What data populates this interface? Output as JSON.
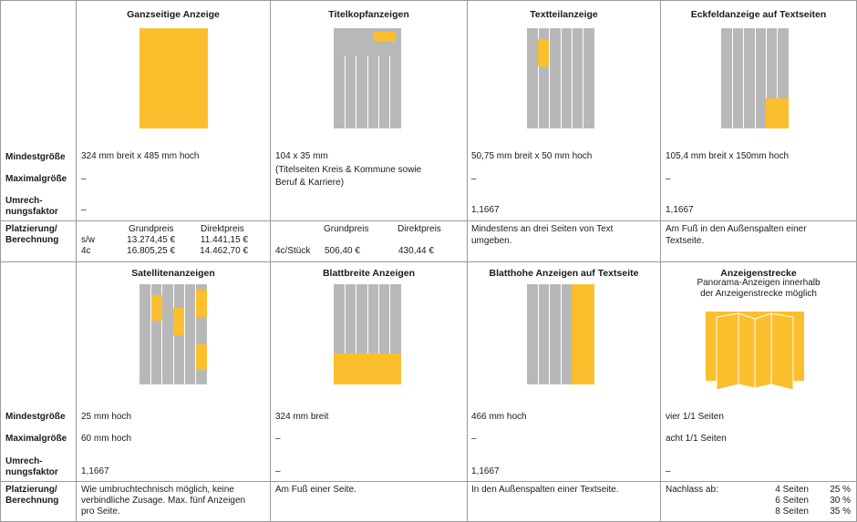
{
  "row_labels": {
    "min": "Mindestgröße",
    "max": "Maximalgröße",
    "factor_1": "Umrech-",
    "factor_2": "nungsfaktor",
    "placement_1": "Platzierung/",
    "placement_2": "Berechnung"
  },
  "top": {
    "full_page": {
      "title": "Ganzseitige Anzeige",
      "min": "324 mm breit x 485 mm hoch",
      "max": "–",
      "factor": "–",
      "price_head_grund": "Grundpreis",
      "price_head_direkt": "Direktpreis",
      "rows": [
        {
          "label": "s/w",
          "grund": "13.274,45 €",
          "direkt": "11.441,15 €"
        },
        {
          "label": "4c",
          "grund": "16.805,25 €",
          "direkt": "14.462,70 €"
        }
      ]
    },
    "title_head": {
      "title": "Titelkopfanzeigen",
      "min": "104 x 35 mm",
      "note_1": "(Titelseiten Kreis & Kommune sowie",
      "note_2": "Beruf & Karriere)",
      "price_head_grund": "Grundpreis",
      "price_head_direkt": "Direktpreis",
      "row_label": "4c/Stück",
      "grund": "506,40 €",
      "direkt": "430,44 €"
    },
    "text_part": {
      "title": "Textteilanzeige",
      "min": "50,75 mm breit x 50 mm hoch",
      "max": "–",
      "factor": "1,1667",
      "placement_1": "Mindestens an drei Seiten von Text",
      "placement_2": "umgeben."
    },
    "corner": {
      "title": "Eckfeldanzeige auf Textseiten",
      "min": "105,4 mm breit x 150mm hoch",
      "max": "–",
      "factor": "1,1667",
      "placement_1": "Am Fuß in den Außenspalten einer",
      "placement_2": "Textseite."
    }
  },
  "bottom": {
    "satellite": {
      "title": "Satellitenanzeigen",
      "min": "25 mm hoch",
      "max": "60 mm hoch",
      "factor": "1,1667",
      "placement_1": "Wie umbruchtechnisch möglich, keine",
      "placement_2": "verbindliche Zusage. Max. fünf Anzeigen",
      "placement_3": "pro Seite."
    },
    "page_wide": {
      "title": "Blattbreite Anzeigen",
      "min": "324 mm breit",
      "max": "–",
      "factor": "–",
      "placement": "Am Fuß einer Seite."
    },
    "page_high": {
      "title": "Blatthohe Anzeigen auf Textseite",
      "min": "466 mm hoch",
      "max": "–",
      "factor": "1,1667",
      "placement": "In den Außenspalten einer Textseite."
    },
    "strip": {
      "title": "Anzeigenstrecke",
      "subtitle_1": "Panorama-Anzeigen innerhalb",
      "subtitle_2": "der Anzeigenstrecke möglich",
      "min": "vier 1/1 Seiten",
      "max": "acht 1/1 Seiten",
      "factor": "–",
      "discount_label": "Nachlass ab:",
      "discounts": [
        {
          "pages": "4 Seiten",
          "pct": "25 %"
        },
        {
          "pages": "6 Seiten",
          "pct": "30 %"
        },
        {
          "pages": "8 Seiten",
          "pct": "35 %"
        }
      ]
    }
  },
  "colors": {
    "ad_yellow": "#fbbf2d",
    "page_gray": "#b8b8b8",
    "grid_line": "#9a9a9a"
  }
}
